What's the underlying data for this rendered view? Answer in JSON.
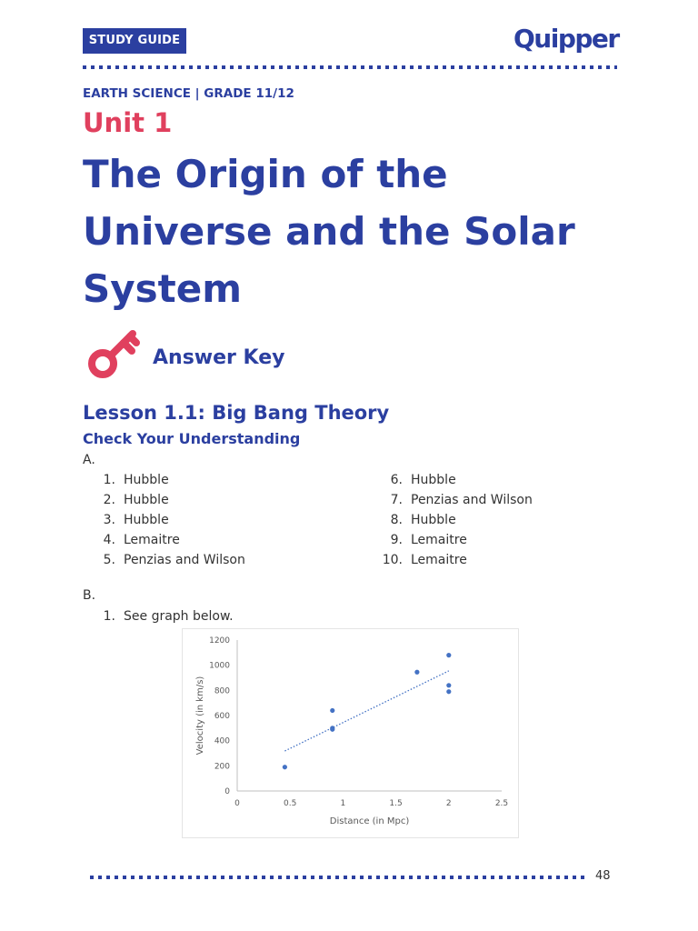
{
  "header": {
    "badge": "STUDY GUIDE",
    "brand": "Quipper",
    "subject": "EARTH SCIENCE | GRADE 11/12"
  },
  "unit": "Unit 1",
  "title": "The Origin of the Universe and the Solar System",
  "answer_key": "Answer Key",
  "lesson": "Lesson 1.1: Big Bang Theory",
  "check": "Check Your Understanding",
  "section_a": {
    "label": "A.",
    "left": [
      {
        "num": "1.",
        "text": "Hubble"
      },
      {
        "num": "2.",
        "text": "Hubble"
      },
      {
        "num": "3.",
        "text": "Hubble"
      },
      {
        "num": "4.",
        "text": "Lemaitre"
      },
      {
        "num": "5.",
        "text": "Penzias and Wilson"
      }
    ],
    "right": [
      {
        "num": "6.",
        "text": "Hubble"
      },
      {
        "num": "7.",
        "text": "Penzias and Wilson"
      },
      {
        "num": "8.",
        "text": "Hubble"
      },
      {
        "num": "9.",
        "text": "Lemaitre"
      },
      {
        "num": "10.",
        "text": "Lemaitre"
      }
    ]
  },
  "section_b": {
    "label": "B.",
    "item_num": "1.",
    "item_text": "See graph below."
  },
  "chart_data": {
    "type": "scatter",
    "title": "",
    "xlabel": "Distance  (in Mpc)",
    "ylabel": "Velocity  (in km/s)",
    "xlim": [
      0,
      2.5
    ],
    "ylim": [
      0,
      1200
    ],
    "xticks": [
      "0",
      "0.5",
      "1",
      "1.5",
      "2",
      "2.5"
    ],
    "yticks": [
      "0",
      "200",
      "400",
      "600",
      "800",
      "1000",
      "1200"
    ],
    "points": [
      {
        "x": 0.45,
        "y": 190
      },
      {
        "x": 0.9,
        "y": 500
      },
      {
        "x": 0.9,
        "y": 490
      },
      {
        "x": 0.9,
        "y": 640
      },
      {
        "x": 1.7,
        "y": 945
      },
      {
        "x": 2.0,
        "y": 1080
      },
      {
        "x": 2.0,
        "y": 840
      },
      {
        "x": 2.0,
        "y": 790
      }
    ],
    "trendline": {
      "x": [
        0.45,
        2.0
      ],
      "y": [
        318,
        955
      ]
    },
    "grid": false,
    "color": "#4472c4"
  },
  "footer": {
    "page": "48"
  },
  "colors": {
    "brand_blue": "#2b3fa0",
    "accent_red": "#e0405e"
  }
}
